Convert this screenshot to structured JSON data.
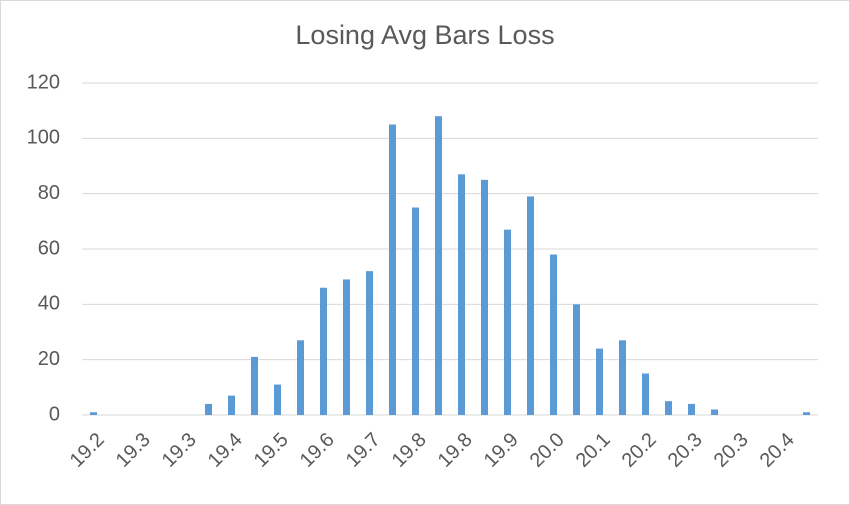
{
  "chart_data": {
    "type": "bar",
    "title": "Losing Avg Bars Loss",
    "categories": [
      "19.2",
      null,
      "19.3",
      null,
      "19.3",
      null,
      "19.4",
      null,
      "19.5",
      null,
      "19.6",
      null,
      "19.7",
      null,
      "19.8",
      null,
      "19.8",
      null,
      "19.9",
      null,
      "20.0",
      null,
      "20.1",
      null,
      "20.2",
      null,
      "20.3",
      null,
      "20.3",
      null,
      "20.4",
      null
    ],
    "values": [
      1,
      0,
      0,
      0,
      0,
      4,
      7,
      21,
      11,
      27,
      46,
      49,
      52,
      105,
      75,
      108,
      87,
      85,
      67,
      79,
      58,
      40,
      24,
      27,
      15,
      5,
      4,
      2,
      0,
      0,
      0,
      1
    ],
    "color": "#5b9bd5",
    "ylim": [
      0,
      120
    ],
    "yticks": [
      0,
      20,
      40,
      60,
      80,
      100,
      120
    ],
    "grid": true
  }
}
